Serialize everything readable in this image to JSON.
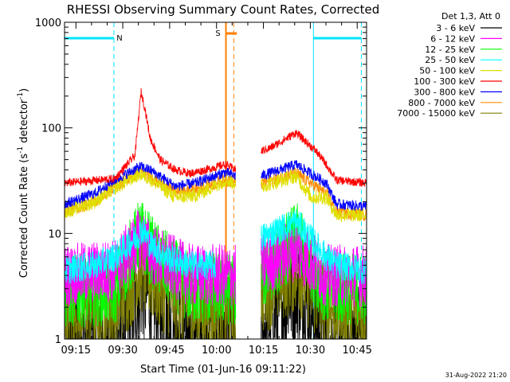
{
  "chart_data": {
    "type": "line",
    "title": "RHESSI Observing Summary Count Rates, Corrected",
    "xlabel": "Start Time (01-Jun-16 09:11:22)",
    "ylabel_main": "Corrected Count Rate (s",
    "ylabel_sup1": "-1",
    "ylabel_mid": " detector",
    "ylabel_sup2": "-1",
    "ylabel_end": ")",
    "yscale": "log",
    "ylim": [
      1,
      1000
    ],
    "xlim": [
      "09:11:22",
      "10:48:00"
    ],
    "xticks": [
      "09:15",
      "09:30",
      "09:45",
      "10:00",
      "10:15",
      "10:30",
      "10:45"
    ],
    "yticks": [
      "1",
      "10",
      "100",
      "1000"
    ],
    "legend_header": "Det 1,3, Att 0",
    "timestamp": "31-Aug-2022 21:20",
    "markers": [
      {
        "label": "N",
        "start": "09:11:22",
        "end": "09:27:10",
        "color": "#00e5ff"
      },
      {
        "label": "S",
        "start": "10:03:00",
        "end": "10:05:30",
        "color": "#ff7f00"
      }
    ],
    "series": [
      {
        "name": "3 - 6 keV",
        "color": "#000000"
      },
      {
        "name": "6 - 12 keV",
        "color": "#ff00ff"
      },
      {
        "name": "12 - 25 keV",
        "color": "#00ff00"
      },
      {
        "name": "25 - 50 keV",
        "color": "#00ffff"
      },
      {
        "name": "50 - 100 keV",
        "color": "#e0e000"
      },
      {
        "name": "100 - 300 keV",
        "color": "#ff0000"
      },
      {
        "name": "300 - 800 keV",
        "color": "#0000ff"
      },
      {
        "name": "800 - 7000 keV",
        "color": "#ff8c00"
      },
      {
        "name": "7000 - 15000 keV",
        "color": "#808000"
      }
    ],
    "series_profiles": {
      "100 - 300 keV": [
        [
          0,
          30
        ],
        [
          10,
          33
        ],
        [
          14,
          55
        ],
        [
          15.2,
          220
        ],
        [
          16,
          150
        ],
        [
          17,
          80
        ],
        [
          19,
          50
        ],
        [
          22,
          40
        ],
        [
          25,
          37
        ],
        [
          28,
          40
        ],
        [
          32,
          45
        ],
        [
          34,
          40
        ],
        [
          35,
          0
        ],
        [
          39,
          0
        ],
        [
          39,
          60
        ],
        [
          41,
          65
        ],
        [
          46,
          90
        ],
        [
          50,
          60
        ],
        [
          52,
          45
        ],
        [
          54,
          32
        ],
        [
          60,
          30
        ]
      ],
      "300 - 800 keV": [
        [
          0,
          19
        ],
        [
          6,
          24
        ],
        [
          10,
          32
        ],
        [
          15,
          43
        ],
        [
          17,
          40
        ],
        [
          22,
          28
        ],
        [
          26,
          30
        ],
        [
          32,
          38
        ],
        [
          34,
          35
        ],
        [
          35,
          0
        ],
        [
          39,
          0
        ],
        [
          39,
          35
        ],
        [
          46,
          45
        ],
        [
          52,
          30
        ],
        [
          54,
          19
        ],
        [
          60,
          18
        ]
      ],
      "50 - 100 keV": [
        [
          0,
          16
        ],
        [
          6,
          20
        ],
        [
          10,
          27
        ],
        [
          15,
          37
        ],
        [
          17,
          33
        ],
        [
          22,
          22
        ],
        [
          26,
          23
        ],
        [
          32,
          32
        ],
        [
          34,
          30
        ],
        [
          35,
          0
        ],
        [
          39,
          0
        ],
        [
          39,
          28
        ],
        [
          46,
          35
        ],
        [
          49,
          22
        ],
        [
          52,
          22
        ],
        [
          54,
          15
        ],
        [
          60,
          15
        ]
      ],
      "800 - 7000 keV": [
        [
          0,
          16
        ],
        [
          6,
          20
        ],
        [
          10,
          28
        ],
        [
          15,
          38
        ],
        [
          17,
          34
        ],
        [
          22,
          25
        ],
        [
          26,
          26
        ],
        [
          32,
          32
        ],
        [
          34,
          30
        ],
        [
          35,
          0
        ],
        [
          39,
          0
        ],
        [
          39,
          30
        ],
        [
          46,
          37
        ],
        [
          52,
          24
        ],
        [
          54,
          16
        ],
        [
          60,
          15
        ]
      ],
      "25 - 50 keV": [
        [
          0,
          4.5
        ],
        [
          6,
          5
        ],
        [
          10,
          6
        ],
        [
          14,
          9
        ],
        [
          15.5,
          11
        ],
        [
          17,
          8
        ],
        [
          20,
          6
        ],
        [
          25,
          5
        ],
        [
          30,
          5
        ],
        [
          35,
          0
        ],
        [
          39,
          0
        ],
        [
          39,
          9
        ],
        [
          46,
          13
        ],
        [
          52,
          6
        ],
        [
          54,
          5
        ],
        [
          60,
          4.5
        ]
      ],
      "6 - 12 keV": [
        [
          0,
          4
        ],
        [
          10,
          4.5
        ],
        [
          15,
          9
        ],
        [
          18,
          6
        ],
        [
          25,
          4
        ],
        [
          34,
          4
        ],
        [
          35,
          0
        ],
        [
          39,
          0
        ],
        [
          39,
          5
        ],
        [
          46,
          7
        ],
        [
          52,
          4
        ],
        [
          60,
          4
        ]
      ],
      "12 - 25 keV": [
        [
          0,
          2.8
        ],
        [
          10,
          3
        ],
        [
          15,
          10
        ],
        [
          18,
          6
        ],
        [
          25,
          3
        ],
        [
          34,
          3
        ],
        [
          35,
          0
        ],
        [
          39,
          0
        ],
        [
          39,
          4
        ],
        [
          46,
          9
        ],
        [
          52,
          3
        ],
        [
          60,
          3
        ]
      ],
      "7000 - 15000 keV": [
        [
          0,
          1.8
        ],
        [
          10,
          2
        ],
        [
          15,
          5
        ],
        [
          20,
          3
        ],
        [
          25,
          2
        ],
        [
          34,
          2
        ],
        [
          35,
          0
        ],
        [
          39,
          0
        ],
        [
          39,
          3
        ],
        [
          46,
          5
        ],
        [
          52,
          2
        ],
        [
          60,
          1.8
        ]
      ],
      "3 - 6 keV": [
        [
          0,
          1
        ],
        [
          6,
          1
        ],
        [
          13,
          1.4
        ],
        [
          15,
          3.5
        ],
        [
          17,
          2.5
        ],
        [
          20,
          1.3
        ],
        [
          22,
          1
        ],
        [
          34,
          1
        ],
        [
          35,
          0
        ],
        [
          39,
          0
        ],
        [
          39,
          1.2
        ],
        [
          46,
          3.5
        ],
        [
          52,
          1
        ],
        [
          60,
          1
        ]
      ]
    }
  }
}
